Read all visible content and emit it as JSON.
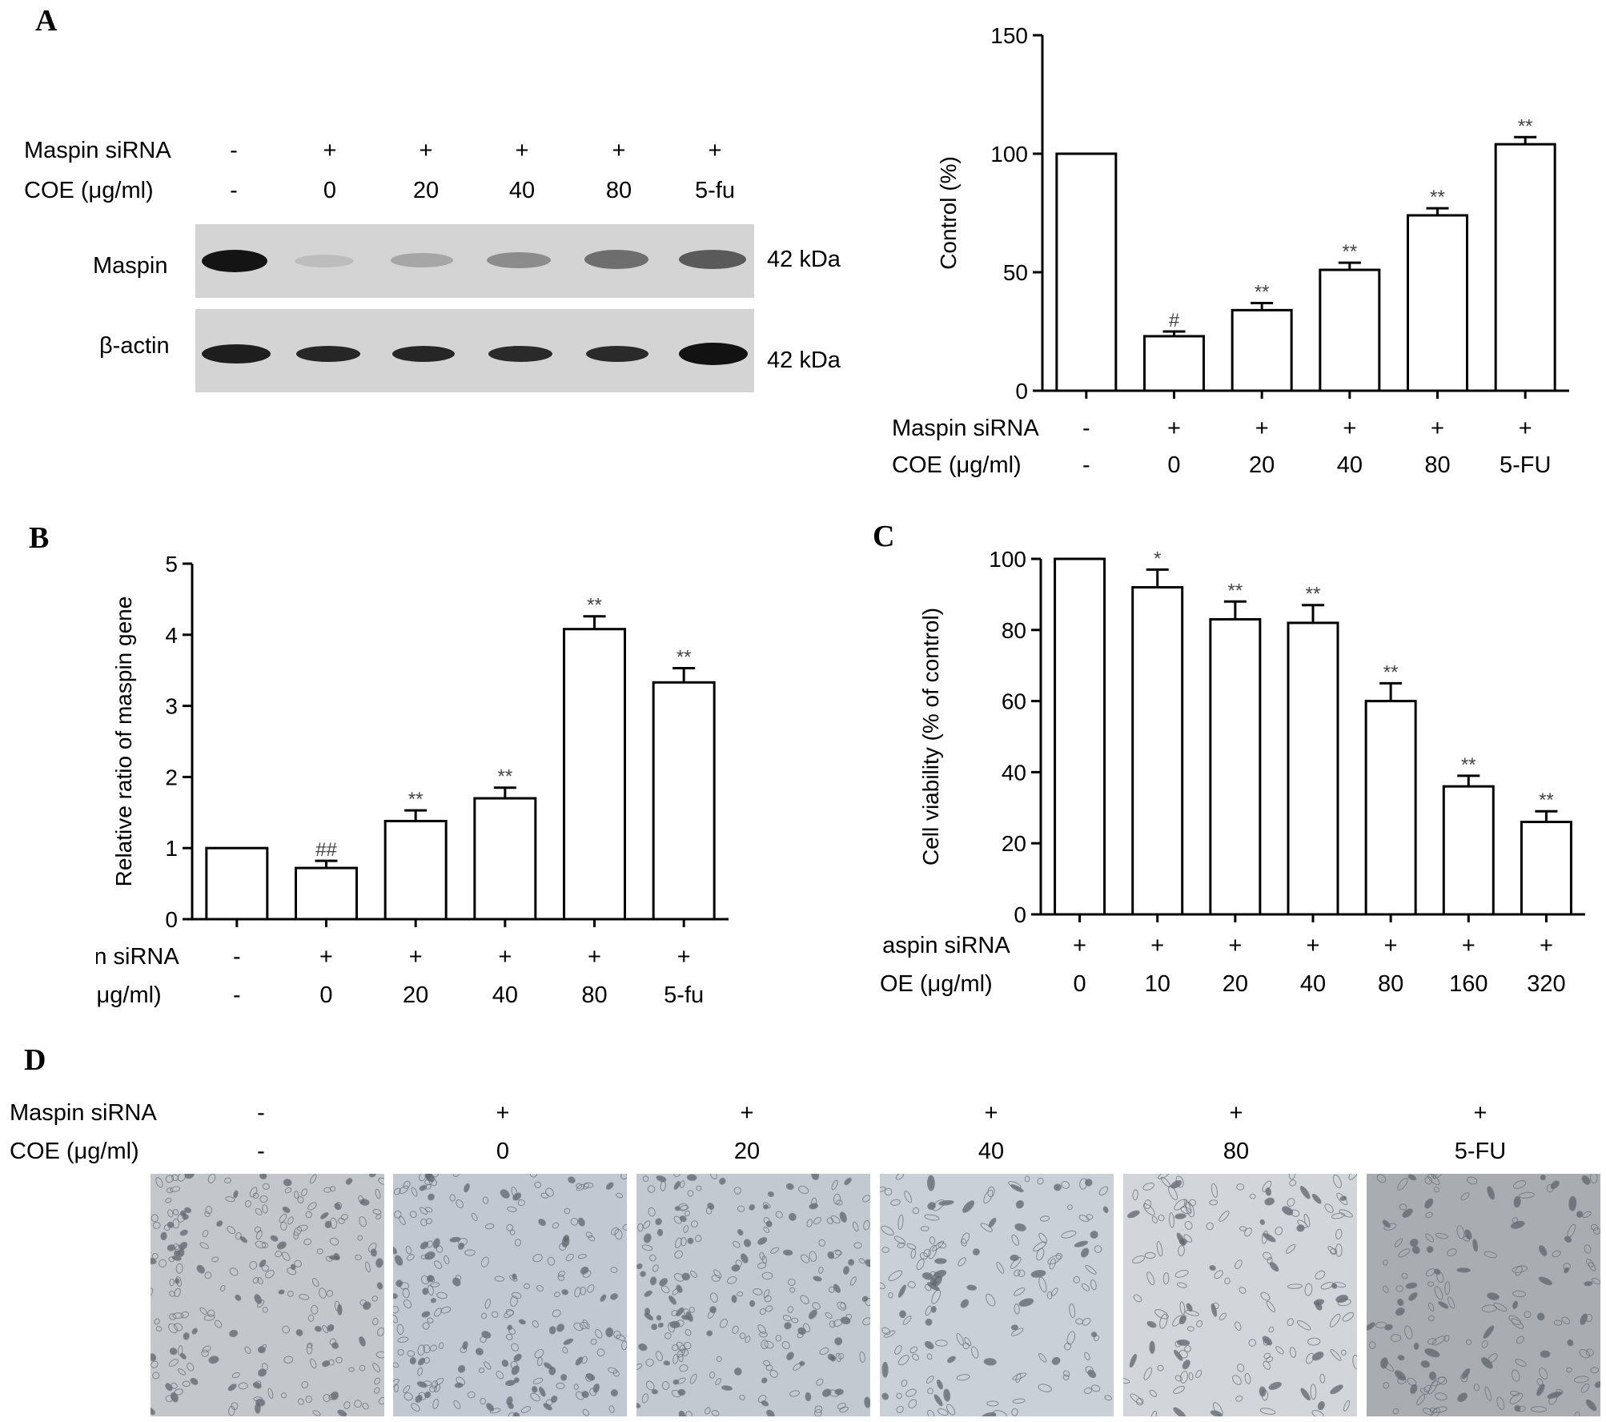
{
  "panels": {
    "A": "A",
    "B": "B",
    "C": "C",
    "D": "D"
  },
  "row_labels": {
    "sirna": "Maspin siRNA",
    "coe": "COE (μg/ml)"
  },
  "blot": {
    "sirna": [
      "-",
      "+",
      "+",
      "+",
      "+",
      "+"
    ],
    "coe": [
      "-",
      "0",
      "20",
      "40",
      "80",
      "5-fu"
    ],
    "bands": [
      "Maspin",
      "β-actin"
    ],
    "sizes": [
      "42 kDa",
      "42 kDa"
    ]
  },
  "micrographs": {
    "sirna": [
      "-",
      "+",
      "+",
      "+",
      "+",
      "+"
    ],
    "coe": [
      "-",
      "0",
      "20",
      "40",
      "80",
      "5-FU"
    ]
  },
  "colors": {
    "bar_fill": "#ffffff",
    "stroke": "#000000",
    "blot_bg": "#d4d4d4",
    "band": "#1a1a1a",
    "marker": "#444444"
  },
  "chart_data": [
    {
      "id": "A",
      "type": "bar",
      "ylabel": "Control (%)",
      "ylim": [
        0,
        150
      ],
      "yticks": [
        0,
        50,
        100,
        150
      ],
      "categories": [
        "-/-",
        "+/0",
        "+/20",
        "+/40",
        "+/80",
        "+/5-FU"
      ],
      "sirna_row": [
        "-",
        "+",
        "+",
        "+",
        "+",
        "+"
      ],
      "coe_row": [
        "-",
        "0",
        "20",
        "40",
        "80",
        "5-FU"
      ],
      "values": [
        100,
        23,
        34,
        51,
        74,
        104
      ],
      "errors": [
        0,
        2,
        3,
        3,
        3,
        3
      ],
      "marks": [
        "",
        "#",
        "**",
        "**",
        "**",
        "**"
      ]
    },
    {
      "id": "B",
      "type": "bar",
      "ylabel": "Relative ratio of maspin gene",
      "ylim": [
        0,
        5
      ],
      "yticks": [
        0,
        1,
        2,
        3,
        4,
        5
      ],
      "categories": [
        "-/-",
        "+/0",
        "+/20",
        "+/40",
        "+/80",
        "+/5-fu"
      ],
      "sirna_row": [
        "-",
        "+",
        "+",
        "+",
        "+",
        "+"
      ],
      "coe_row": [
        "-",
        "0",
        "20",
        "40",
        "80",
        "5-fu"
      ],
      "values": [
        1.0,
        0.72,
        1.38,
        1.7,
        4.08,
        3.33
      ],
      "errors": [
        0,
        0.1,
        0.15,
        0.15,
        0.18,
        0.2
      ],
      "marks": [
        "",
        "##",
        "**",
        "**",
        "**",
        "**"
      ]
    },
    {
      "id": "C",
      "type": "bar",
      "ylabel": "Cell viability (% of control)",
      "ylim": [
        0,
        100
      ],
      "yticks": [
        0,
        20,
        40,
        60,
        80,
        100
      ],
      "categories": [
        "0",
        "10",
        "20",
        "40",
        "80",
        "160",
        "320"
      ],
      "sirna_row": [
        "+",
        "+",
        "+",
        "+",
        "+",
        "+",
        "+"
      ],
      "coe_row": [
        "0",
        "10",
        "20",
        "40",
        "80",
        "160",
        "320"
      ],
      "values": [
        100,
        92,
        83,
        82,
        60,
        36,
        26
      ],
      "errors": [
        0,
        5,
        5,
        5,
        5,
        3,
        3
      ],
      "marks": [
        "",
        "*",
        "**",
        "**",
        "**",
        "**",
        "**"
      ]
    }
  ]
}
